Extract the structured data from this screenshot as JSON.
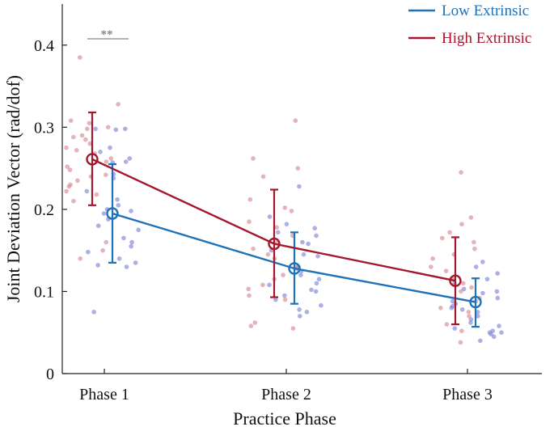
{
  "chart_data": {
    "type": "line",
    "title": "",
    "xlabel": "Practice Phase",
    "ylabel": "Joint Deviation Vector (rad/dof)",
    "categories": [
      "Phase 1",
      "Phase 2",
      "Phase 3"
    ],
    "ylim": [
      0,
      0.45
    ],
    "yticks": [
      0,
      0.1,
      0.2,
      0.3,
      0.4
    ],
    "ytick_labels": [
      "0",
      "0.1",
      "0.2",
      "0.3",
      "0.4"
    ],
    "legend_position": "top-right",
    "significance": {
      "label": "**",
      "category": "Phase 1"
    },
    "series": [
      {
        "name": "Low Extrinsic",
        "color": "#1f72b8",
        "scatter_color": "#7f85d6",
        "means": [
          0.195,
          0.128,
          0.087
        ],
        "err_low": [
          0.135,
          0.085,
          0.057
        ],
        "err_high": [
          0.255,
          0.172,
          0.116
        ],
        "points": [
          [
            0.298,
            0.298,
            0.297,
            0.275,
            0.27,
            0.262,
            0.258,
            0.257,
            0.243,
            0.238,
            0.222,
            0.212,
            0.205,
            0.2,
            0.198,
            0.195,
            0.188,
            0.18,
            0.175,
            0.165,
            0.16,
            0.155,
            0.148,
            0.14,
            0.135,
            0.132,
            0.13,
            0.075
          ],
          [
            0.228,
            0.191,
            0.182,
            0.177,
            0.172,
            0.168,
            0.16,
            0.158,
            0.15,
            0.145,
            0.143,
            0.13,
            0.128,
            0.125,
            0.12,
            0.115,
            0.11,
            0.108,
            0.102,
            0.1,
            0.095,
            0.09,
            0.083,
            0.078,
            0.075,
            0.07
          ],
          [
            0.136,
            0.13,
            0.122,
            0.115,
            0.11,
            0.103,
            0.1,
            0.098,
            0.092,
            0.088,
            0.085,
            0.082,
            0.08,
            0.078,
            0.075,
            0.07,
            0.066,
            0.062,
            0.058,
            0.055,
            0.052,
            0.05,
            0.05,
            0.048,
            0.045,
            0.04
          ]
        ]
      },
      {
        "name": "High Extrinsic",
        "color": "#a3182d",
        "scatter_color": "#d98a95",
        "means": [
          0.261,
          0.158,
          0.113
        ],
        "err_low": [
          0.205,
          0.093,
          0.06
        ],
        "err_high": [
          0.318,
          0.224,
          0.166
        ],
        "points": [
          [
            0.385,
            0.328,
            0.308,
            0.305,
            0.3,
            0.298,
            0.29,
            0.288,
            0.285,
            0.28,
            0.275,
            0.272,
            0.268,
            0.262,
            0.258,
            0.252,
            0.248,
            0.242,
            0.24,
            0.235,
            0.23,
            0.228,
            0.222,
            0.218,
            0.21,
            0.16,
            0.15,
            0.14
          ],
          [
            0.308,
            0.262,
            0.25,
            0.24,
            0.212,
            0.202,
            0.198,
            0.185,
            0.178,
            0.168,
            0.16,
            0.152,
            0.145,
            0.14,
            0.13,
            0.12,
            0.115,
            0.108,
            0.103,
            0.095,
            0.09,
            0.062,
            0.058,
            0.055
          ],
          [
            0.245,
            0.19,
            0.182,
            0.172,
            0.165,
            0.16,
            0.152,
            0.145,
            0.14,
            0.13,
            0.125,
            0.115,
            0.11,
            0.105,
            0.1,
            0.092,
            0.088,
            0.08,
            0.075,
            0.07,
            0.06,
            0.052,
            0.038
          ]
        ]
      }
    ]
  }
}
